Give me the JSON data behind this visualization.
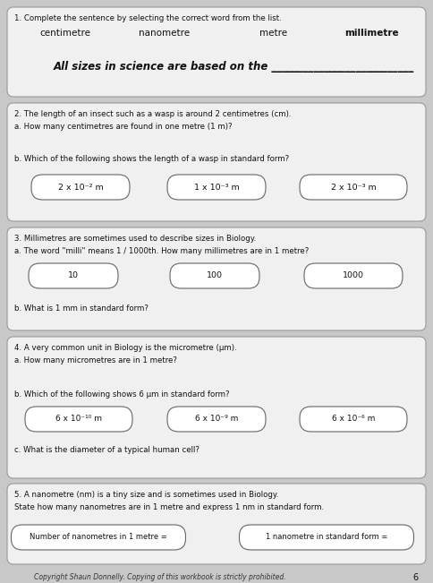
{
  "bg_color": "#c8c8c8",
  "section_bg": "#f2f2f2",
  "border_color": "#888888",
  "section1": {
    "header": "1. Complete the sentence by selecting the correct word from the list.",
    "word1": "centimetre",
    "word2": "nanometre",
    "word3": "metre",
    "word4": "millimetre",
    "sentence": "All sizes in science are based on the ___________________________"
  },
  "section2": {
    "header": "2. The length of an insect such as a wasp is around 2 centimetres (cm).",
    "qa": "a. How many centimetres are found in one metre (1 m)?",
    "qb": "b. Which of the following shows the length of a wasp in standard form?",
    "b1": "2 x 10⁻² m",
    "b2": "1 x 10⁻³ m",
    "b3": "2 x 10⁻³ m"
  },
  "section3": {
    "header": "3. Millimetres are sometimes used to describe sizes in Biology.",
    "qa": "a. The word \"milli\" means 1 / 1000th. How many millimetres are in 1 metre?",
    "a1": "10",
    "a2": "100",
    "a3": "1000",
    "qb": "b. What is 1 mm in standard form?"
  },
  "section4": {
    "header": "4. A very common unit in Biology is the micrometre (μm).",
    "qa": "a. How many micrometres are in 1 metre?",
    "qb": "b. Which of the following shows 6 μm in standard form?",
    "b1": "6 x 10⁻¹⁰ m",
    "b2": "6 x 10⁻⁹ m",
    "b3": "6 x 10⁻⁶ m",
    "qc": "c. What is the diameter of a typical human cell?"
  },
  "section5": {
    "header": "5. A nanometre (nm) is a tiny size and is sometimes used in Biology.",
    "sub": "State how many nanometres are in 1 metre and express 1 nm in standard form.",
    "box1": "Number of nanometres in 1 metre =",
    "box2": "1 nanometre in standard form ="
  },
  "footer1": "Copyright Shaun Donnelly. Copying of this workbook is strictly prohibited.",
  "footer2": "6"
}
